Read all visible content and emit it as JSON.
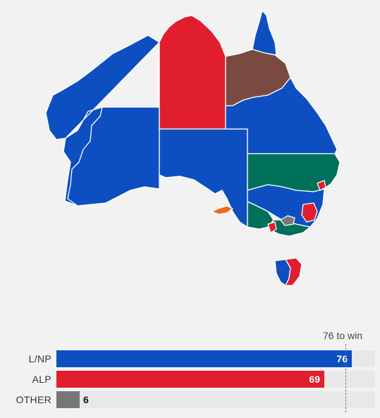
{
  "colors": {
    "lnp": "#0d4fc1",
    "alp": "#e01e2e",
    "green": "#00705a",
    "brown": "#7a4a40",
    "other": "#777777",
    "orange": "#f06a1a",
    "border": "#ffffff"
  },
  "map": {
    "regions": [
      {
        "name": "region-western-australia-north",
        "party": "lnp"
      },
      {
        "name": "region-western-australia-south",
        "party": "lnp"
      },
      {
        "name": "region-northern-territory",
        "party": "alp"
      },
      {
        "name": "region-south-australia",
        "party": "lnp"
      },
      {
        "name": "region-queensland-north",
        "party": "brown"
      },
      {
        "name": "region-queensland-cape",
        "party": "lnp"
      },
      {
        "name": "region-queensland-south",
        "party": "lnp"
      },
      {
        "name": "region-new-south-wales-west",
        "party": "green"
      },
      {
        "name": "region-new-south-wales-south",
        "party": "lnp"
      },
      {
        "name": "region-victoria-west",
        "party": "green"
      },
      {
        "name": "region-victoria-east",
        "party": "green"
      },
      {
        "name": "region-tasmania-west",
        "party": "lnp"
      },
      {
        "name": "region-tasmania-east",
        "party": "alp"
      }
    ]
  },
  "results": {
    "win_label": "76 to win",
    "win_target": 76,
    "scale_max": 82,
    "parties": [
      {
        "label": "L/NP",
        "seats": 76,
        "color": "#0d4fc1"
      },
      {
        "label": "ALP",
        "seats": 69,
        "color": "#e01e2e"
      },
      {
        "label": "OTHER",
        "seats": 6,
        "color": "#777777"
      }
    ]
  }
}
